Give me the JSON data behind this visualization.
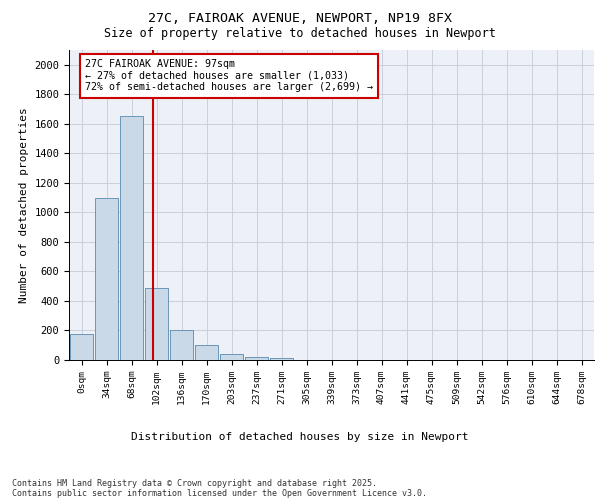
{
  "title_line1": "27C, FAIROAK AVENUE, NEWPORT, NP19 8FX",
  "title_line2": "Size of property relative to detached houses in Newport",
  "xlabel": "Distribution of detached houses by size in Newport",
  "ylabel": "Number of detached properties",
  "categories": [
    "0sqm",
    "34sqm",
    "68sqm",
    "102sqm",
    "136sqm",
    "170sqm",
    "203sqm",
    "237sqm",
    "271sqm",
    "305sqm",
    "339sqm",
    "373sqm",
    "407sqm",
    "441sqm",
    "475sqm",
    "509sqm",
    "542sqm",
    "576sqm",
    "610sqm",
    "644sqm",
    "678sqm"
  ],
  "bar_heights": [
    175,
    1100,
    1650,
    490,
    200,
    105,
    42,
    22,
    15,
    0,
    0,
    0,
    0,
    0,
    0,
    0,
    0,
    0,
    0,
    0,
    0
  ],
  "bar_color": "#c9d9e8",
  "bar_edge_color": "#5a8ab0",
  "grid_color": "#c8d0dc",
  "bg_color": "#edf1f7",
  "vline_color": "#cc0000",
  "annotation_text": "27C FAIROAK AVENUE: 97sqm\n← 27% of detached houses are smaller (1,033)\n72% of semi-detached houses are larger (2,699) →",
  "annotation_box_color": "#cc0000",
  "ylim": [
    0,
    2100
  ],
  "yticks": [
    0,
    200,
    400,
    600,
    800,
    1000,
    1200,
    1400,
    1600,
    1800,
    2000
  ],
  "footer_line1": "Contains HM Land Registry data © Crown copyright and database right 2025.",
  "footer_line2": "Contains public sector information licensed under the Open Government Licence v3.0."
}
